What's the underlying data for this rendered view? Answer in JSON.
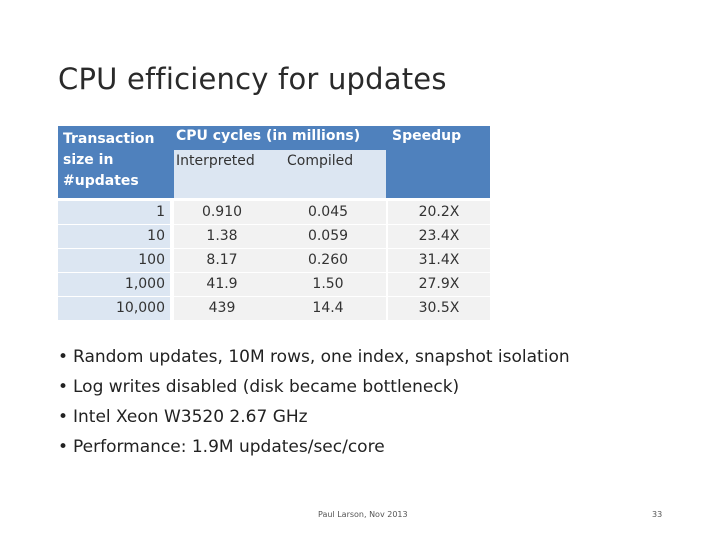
{
  "slide": {
    "title": "CPU efficiency for updates"
  },
  "table": {
    "headers": {
      "transaction": "Transaction size in #updates",
      "cpu_cycles": "CPU cycles (in millions)",
      "interpreted": "Interpreted",
      "compiled": "Compiled",
      "speedup": "Speedup"
    },
    "rows": [
      {
        "size": "1",
        "interpreted": "0.910",
        "compiled": "0.045",
        "speedup": "20.2X"
      },
      {
        "size": "10",
        "interpreted": "1.38",
        "compiled": "0.059",
        "speedup": "23.4X"
      },
      {
        "size": "100",
        "interpreted": "8.17",
        "compiled": "0.260",
        "speedup": "31.4X"
      },
      {
        "size": "1,000",
        "interpreted": "41.9",
        "compiled": "1.50",
        "speedup": "27.9X"
      },
      {
        "size": "10,000",
        "interpreted": "439",
        "compiled": "14.4",
        "speedup": "30.5X"
      }
    ]
  },
  "bullets": [
    "Random updates, 10M rows, one index, snapshot isolation",
    "Log writes disabled (disk became bottleneck)",
    "Intel Xeon W3520 2.67 GHz",
    "Performance: 1.9M updates/sec/core"
  ],
  "footer": {
    "author": "Paul Larson, Nov 2013",
    "page": "33"
  }
}
